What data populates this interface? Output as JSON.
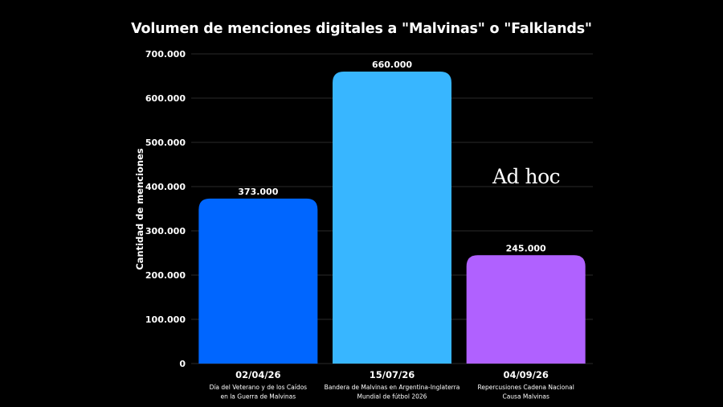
{
  "chart_data": {
    "type": "bar",
    "title": "Volumen de menciones digitales a \"Malvinas\" o \"Falklands\"",
    "xlabel": "",
    "ylabel": "Cantidad de menciones",
    "ylim": [
      0,
      700000
    ],
    "yticks": [
      0,
      100000,
      200000,
      300000,
      400000,
      500000,
      600000,
      700000
    ],
    "ytick_labels": [
      "0",
      "100.000",
      "200.000",
      "300.000",
      "400.000",
      "500.000",
      "600.000",
      "700.000"
    ],
    "grid": true,
    "categories": [
      "02/04/26",
      "15/07/26",
      "04/09/26"
    ],
    "descriptions": [
      [
        "Día del Veterano y de los Caídos",
        "en la Guerra de Malvinas"
      ],
      [
        "Bandera de Malvinas en Argentina-Inglaterra",
        "Mundial de fútbol 2026"
      ],
      [
        "Repercusiones Cadena Nacional",
        "Causa Malvinas"
      ]
    ],
    "values": [
      373000,
      660000,
      245000
    ],
    "value_labels": [
      "373.000",
      "660.000",
      "245.000"
    ],
    "colors": [
      "#0066ff",
      "#38b6ff",
      "#b061ff"
    ]
  },
  "watermark": "Ad hoc"
}
